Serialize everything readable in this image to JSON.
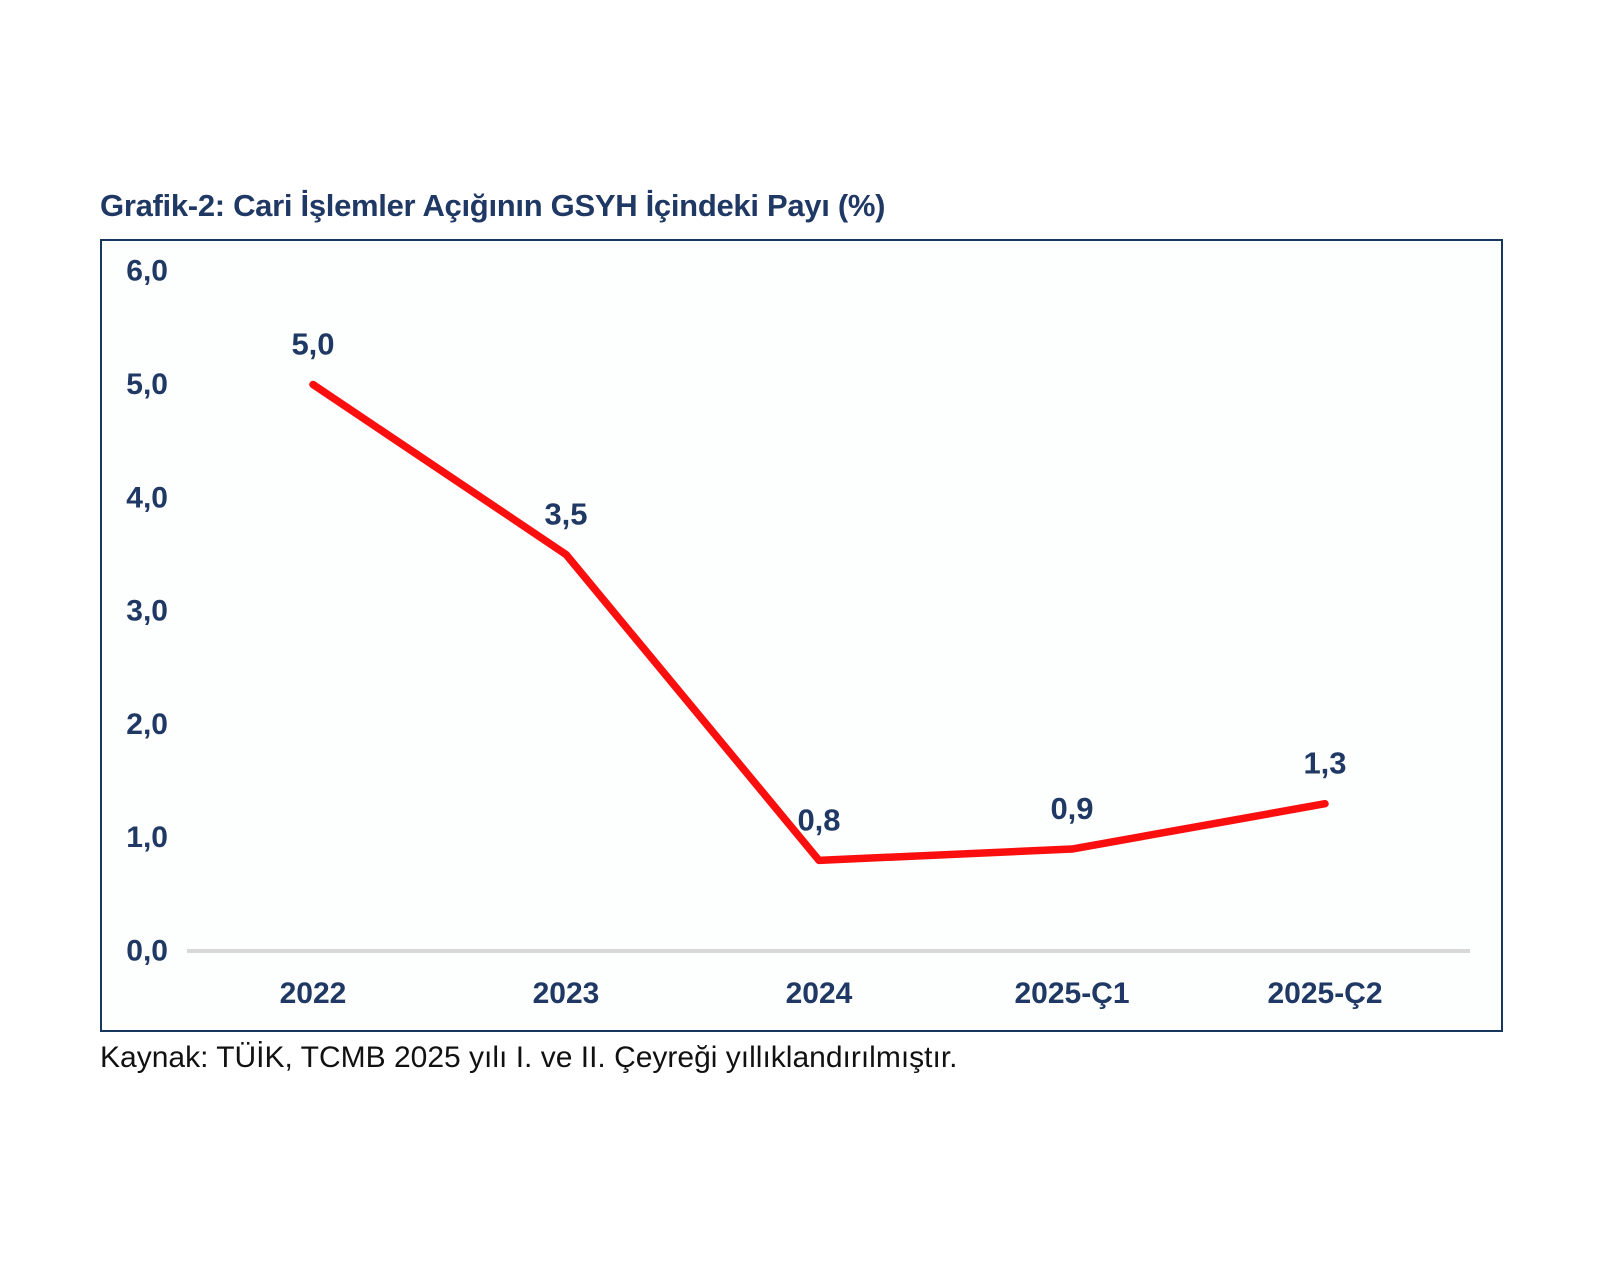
{
  "title": "Grafik-2: Cari İşlemler Açığının GSYH İçindeki Payı (%)",
  "source_note": "Kaynak: TÜİK, TCMB 2025 yılı I. ve II. Çeyreği yıllıklandırılmıştır.",
  "colors": {
    "title_navy": "#1F3864",
    "tick_navy": "#1F3864",
    "line_red": "#FA0E0E",
    "axis_gray": "#D8D8D8",
    "box_border": "#17375E"
  },
  "chart_data": {
    "type": "line",
    "title": "Grafik-2: Cari İşlemler Açığının GSYH İçindeki Payı (%)",
    "categories": [
      "2022",
      "2023",
      "2024",
      "2025-Ç1",
      "2025-Ç2"
    ],
    "values": [
      5.0,
      3.5,
      0.8,
      0.9,
      1.3
    ],
    "point_labels": [
      "5,0",
      "3,5",
      "0,8",
      "0,9",
      "1,3"
    ],
    "y_tick_values": [
      0,
      1,
      2,
      3,
      4,
      5,
      6
    ],
    "y_tick_labels": [
      "0,0",
      "1,0",
      "2,0",
      "3,0",
      "4,0",
      "5,0",
      "6,0"
    ],
    "xlabel": "",
    "ylabel": "",
    "ylim": [
      0,
      6
    ],
    "grid": false,
    "legend_position": "none",
    "decimal_separator": ",",
    "line_color": "#FA0E0E"
  }
}
